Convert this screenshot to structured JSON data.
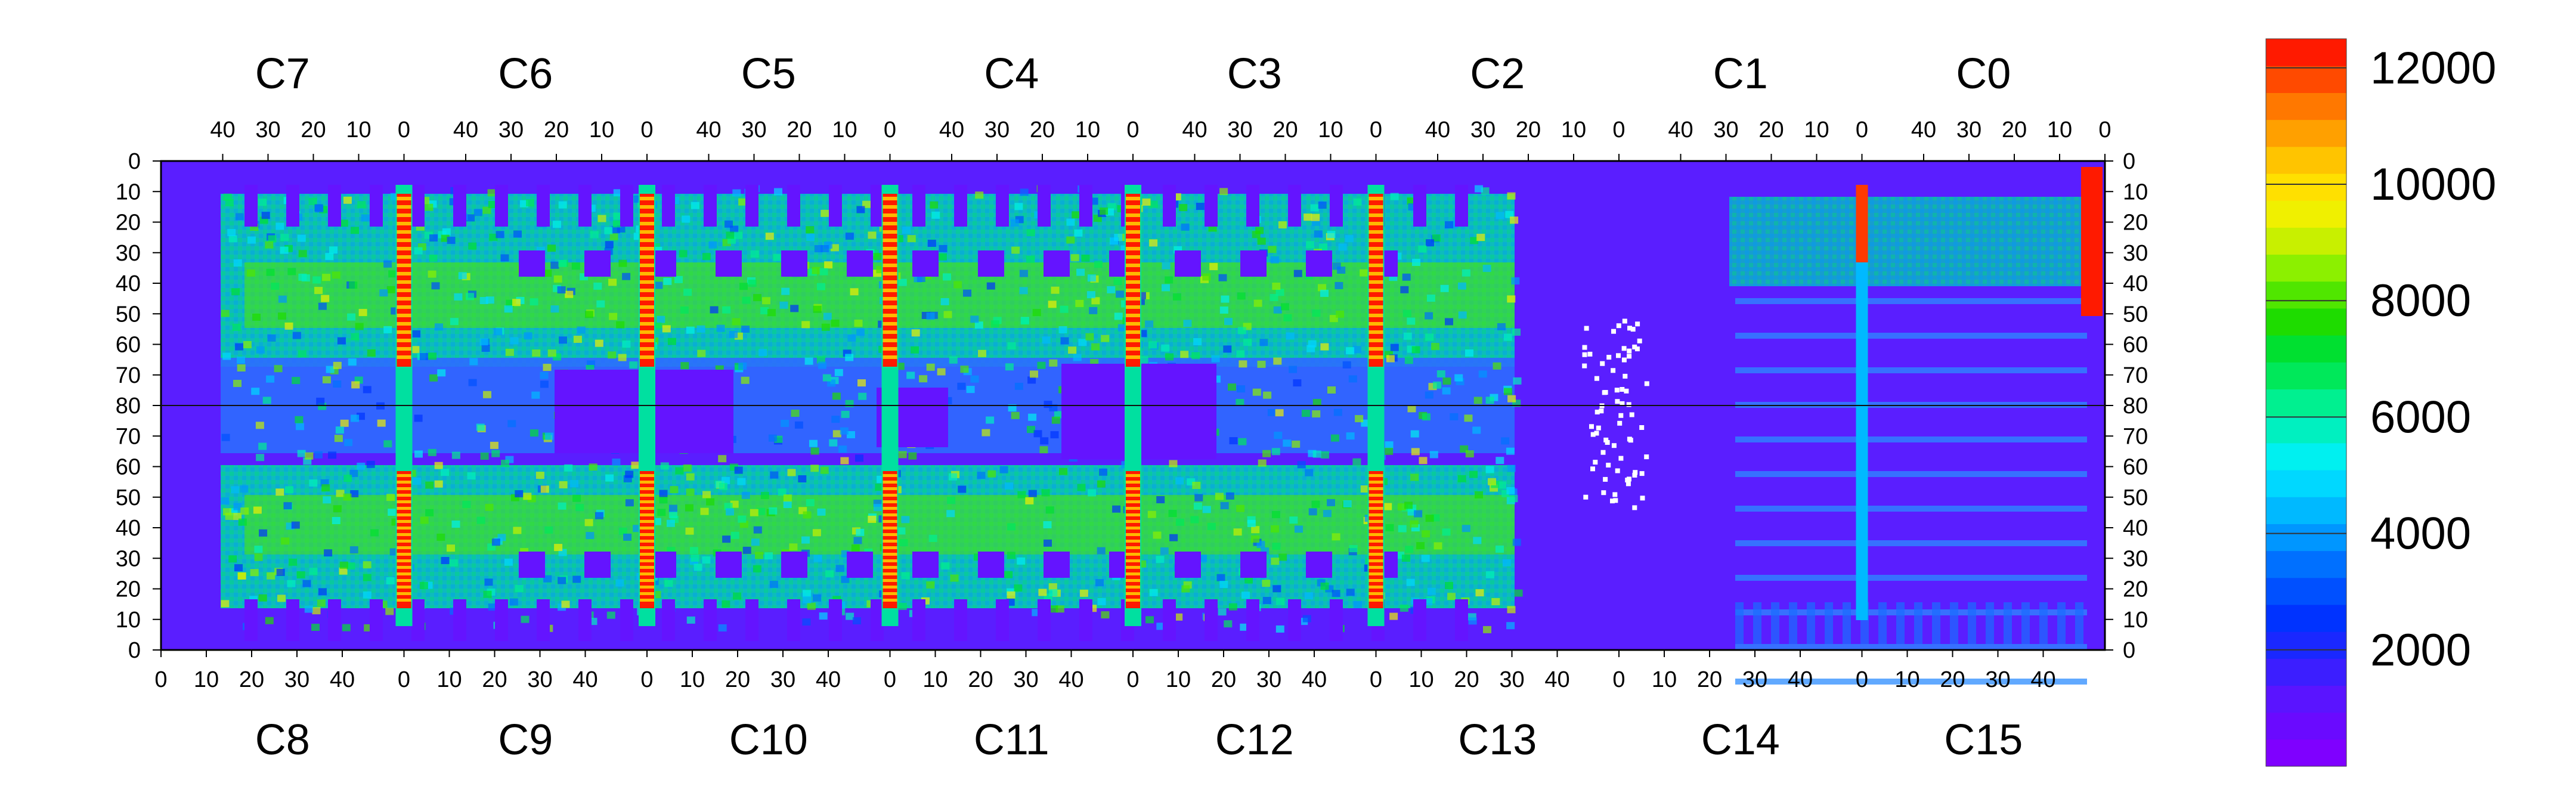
{
  "chart_data": {
    "type": "heatmap",
    "title": "",
    "top_row_chips": [
      "C7",
      "C6",
      "C5",
      "C4",
      "C3",
      "C2",
      "C1",
      "C0"
    ],
    "bottom_row_chips": [
      "C8",
      "C9",
      "C10",
      "C11",
      "C12",
      "C13",
      "C14",
      "C15"
    ],
    "top_x_tick_labels": [
      "40",
      "30",
      "20",
      "10",
      "0"
    ],
    "bottom_x_tick_labels": [
      "0",
      "10",
      "20",
      "30",
      "40"
    ],
    "left_y_tick_labels": [
      "0",
      "10",
      "20",
      "30",
      "40",
      "50",
      "60",
      "70",
      "80",
      "70",
      "60",
      "50",
      "40",
      "30",
      "20",
      "10",
      "0"
    ],
    "right_y_tick_labels": [
      "0",
      "10",
      "20",
      "30",
      "40",
      "50",
      "60",
      "70",
      "80",
      "70",
      "60",
      "50",
      "40",
      "30",
      "20",
      "10",
      "0"
    ],
    "colorbar": {
      "min": 0,
      "max": 12500,
      "tick_labels": [
        "2000",
        "4000",
        "6000",
        "8000",
        "10000",
        "12000"
      ],
      "tick_values": [
        2000,
        4000,
        6000,
        8000,
        10000,
        12000
      ],
      "colors": [
        "#7f00ff",
        "#6a0aff",
        "#5a14ff",
        "#3c1eff",
        "#1a28ff",
        "#0033ff",
        "#0050ff",
        "#0070ff",
        "#0096ff",
        "#00b9ff",
        "#00d8ff",
        "#00f0f0",
        "#00f0c0",
        "#00f090",
        "#00e85a",
        "#00e030",
        "#1edc00",
        "#50e600",
        "#8cf000",
        "#c8f000",
        "#f0f000",
        "#ffe000",
        "#ffc400",
        "#ffa000",
        "#ff7800",
        "#ff4a00",
        "#ff1a00"
      ]
    }
  }
}
